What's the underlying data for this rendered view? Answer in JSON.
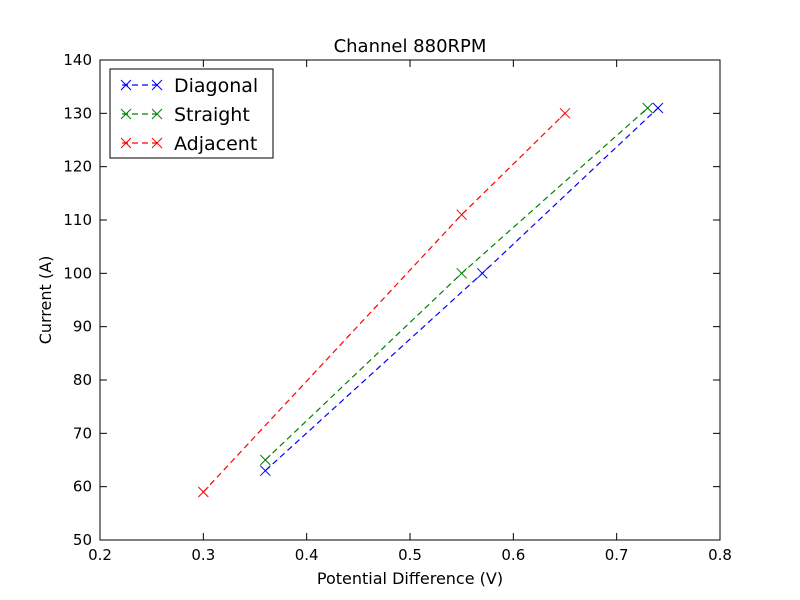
{
  "chart_data": {
    "type": "line",
    "title": "Channel 880RPM",
    "xlabel": "Potential Difference (V)",
    "ylabel": "Current (A)",
    "xlim": [
      0.2,
      0.8
    ],
    "ylim": [
      50,
      140
    ],
    "x_ticks": [
      0.2,
      0.3,
      0.4,
      0.5,
      0.6,
      0.7,
      0.8
    ],
    "x_tick_labels": [
      "0.2",
      "0.3",
      "0.4",
      "0.5",
      "0.6",
      "0.7",
      "0.8"
    ],
    "y_ticks": [
      50,
      60,
      70,
      80,
      90,
      100,
      110,
      120,
      130,
      140
    ],
    "y_tick_labels": [
      "50",
      "60",
      "70",
      "80",
      "90",
      "100",
      "110",
      "120",
      "130",
      "140"
    ],
    "grid": false,
    "legend_position": "top-left",
    "marker": "x",
    "line_style": "dashed",
    "series": [
      {
        "name": "Diagonal",
        "color": "#0000ff",
        "points": [
          {
            "x": 0.36,
            "y": 63
          },
          {
            "x": 0.57,
            "y": 100
          },
          {
            "x": 0.74,
            "y": 131
          }
        ]
      },
      {
        "name": "Straight",
        "color": "#008000",
        "points": [
          {
            "x": 0.36,
            "y": 65
          },
          {
            "x": 0.55,
            "y": 100
          },
          {
            "x": 0.73,
            "y": 131
          }
        ]
      },
      {
        "name": "Adjacent",
        "color": "#ff0000",
        "points": [
          {
            "x": 0.3,
            "y": 59
          },
          {
            "x": 0.55,
            "y": 111
          },
          {
            "x": 0.65,
            "y": 130
          }
        ]
      }
    ]
  }
}
